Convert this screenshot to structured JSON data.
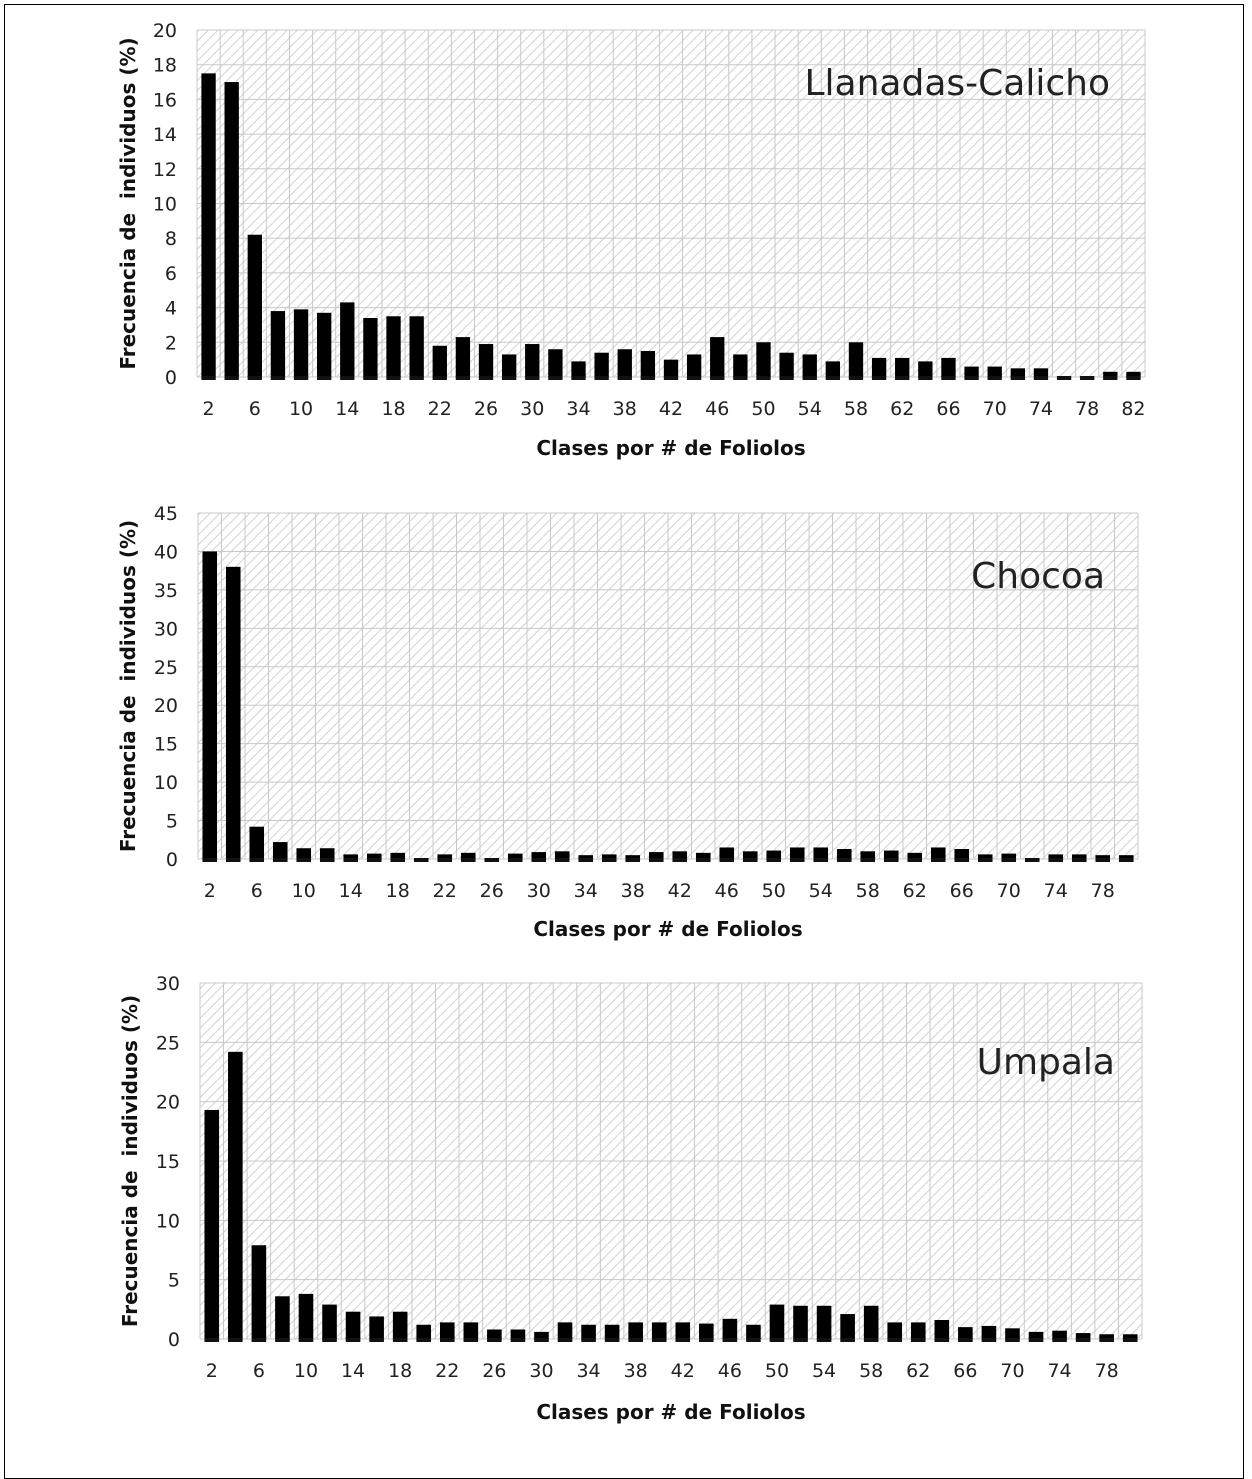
{
  "chart_data": [
    {
      "type": "bar",
      "title": "Llanadas-Calicho",
      "xlabel": "Clases por # de Foliolos",
      "ylabel": "Frecuencia de  individuos (%)",
      "ylim": [
        0,
        20
      ],
      "ystep": 2,
      "grid": true,
      "legend": "none",
      "bar_color": "#000000",
      "categories": [
        "2",
        "4",
        "6",
        "8",
        "10",
        "12",
        "14",
        "16",
        "18",
        "20",
        "22",
        "24",
        "26",
        "28",
        "30",
        "32",
        "34",
        "36",
        "38",
        "40",
        "42",
        "44",
        "46",
        "48",
        "50",
        "52",
        "54",
        "56",
        "58",
        "60",
        "62",
        "64",
        "66",
        "68",
        "70",
        "72",
        "74",
        "76",
        "78",
        "80",
        "82"
      ],
      "tick_labels": [
        "2",
        "6",
        "10",
        "14",
        "18",
        "22",
        "26",
        "30",
        "34",
        "38",
        "42",
        "46",
        "50",
        "54",
        "58",
        "62",
        "66",
        "70",
        "74",
        "78",
        "82"
      ],
      "values": [
        17.5,
        17.0,
        8.2,
        3.8,
        3.9,
        3.7,
        4.3,
        3.4,
        3.5,
        3.5,
        1.8,
        2.3,
        1.9,
        1.3,
        1.9,
        1.6,
        0.9,
        1.4,
        1.6,
        1.5,
        1.0,
        1.3,
        2.3,
        1.3,
        2.0,
        1.4,
        1.3,
        0.9,
        2.0,
        1.1,
        1.1,
        0.9,
        1.1,
        0.6,
        0.6,
        0.5,
        0.5,
        0,
        0,
        0.3,
        0.3
      ]
    },
    {
      "type": "bar",
      "title": "Chocoa",
      "xlabel": "Clases por # de Foliolos",
      "ylabel": "Frecuencia de  individuos (%)",
      "ylim": [
        0,
        45
      ],
      "ystep": 5,
      "grid": true,
      "legend": "none",
      "bar_color": "#000000",
      "categories": [
        "2",
        "4",
        "6",
        "8",
        "10",
        "12",
        "14",
        "16",
        "18",
        "20",
        "22",
        "24",
        "26",
        "28",
        "30",
        "32",
        "34",
        "36",
        "38",
        "40",
        "42",
        "44",
        "46",
        "48",
        "50",
        "52",
        "54",
        "56",
        "58",
        "60",
        "62",
        "64",
        "66",
        "68",
        "70",
        "72",
        "74",
        "76",
        "78",
        "80"
      ],
      "tick_labels": [
        "2",
        "6",
        "10",
        "14",
        "18",
        "22",
        "26",
        "30",
        "34",
        "38",
        "42",
        "46",
        "50",
        "54",
        "58",
        "62",
        "66",
        "70",
        "74",
        "78"
      ],
      "values": [
        40.0,
        38.0,
        4.2,
        2.2,
        1.4,
        1.4,
        0.6,
        0.7,
        0.8,
        0,
        0.6,
        0.8,
        0,
        0.7,
        0.9,
        1.0,
        0.5,
        0.6,
        0.5,
        0.9,
        1.0,
        0.8,
        1.5,
        1.0,
        1.1,
        1.5,
        1.5,
        1.3,
        1.0,
        1.1,
        0.8,
        1.5,
        1.3,
        0.6,
        0.7,
        0,
        0.6,
        0.6,
        0.5,
        0.5
      ]
    },
    {
      "type": "bar",
      "title": "Umpala",
      "xlabel": "Clases por # de Foliolos",
      "ylabel": "Frecuencia de  individuos (%)",
      "ylim": [
        0,
        30
      ],
      "ystep": 5,
      "grid": true,
      "legend": "none",
      "bar_color": "#000000",
      "categories": [
        "2",
        "4",
        "6",
        "8",
        "10",
        "12",
        "14",
        "16",
        "18",
        "20",
        "22",
        "24",
        "26",
        "28",
        "30",
        "32",
        "34",
        "36",
        "38",
        "40",
        "42",
        "44",
        "46",
        "48",
        "50",
        "52",
        "54",
        "56",
        "58",
        "60",
        "62",
        "64",
        "66",
        "68",
        "70",
        "72",
        "74",
        "76",
        "78",
        "80"
      ],
      "tick_labels": [
        "2",
        "6",
        "10",
        "14",
        "18",
        "22",
        "26",
        "30",
        "34",
        "38",
        "42",
        "46",
        "50",
        "54",
        "58",
        "62",
        "66",
        "70",
        "74",
        "78"
      ],
      "values": [
        19.3,
        24.2,
        7.9,
        3.6,
        3.8,
        2.9,
        2.3,
        1.9,
        2.3,
        1.2,
        1.4,
        1.4,
        0.8,
        0.8,
        0.6,
        1.4,
        1.2,
        1.2,
        1.4,
        1.4,
        1.4,
        1.3,
        1.7,
        1.2,
        2.9,
        2.8,
        2.8,
        2.1,
        2.8,
        1.4,
        1.4,
        1.6,
        1.0,
        1.1,
        0.9,
        0.6,
        0.7,
        0.5,
        0.4,
        0.4
      ]
    }
  ]
}
